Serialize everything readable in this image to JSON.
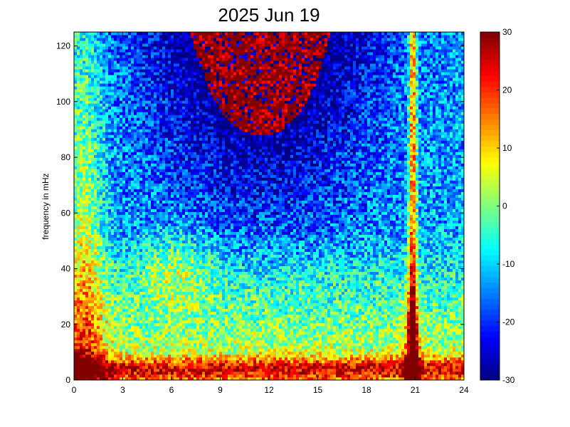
{
  "chart_data": {
    "type": "heatmap",
    "title": "2025 Jun 19",
    "xlabel": "",
    "ylabel": "frequency in mHz",
    "xlim": [
      0,
      24
    ],
    "ylim": [
      0,
      125
    ],
    "xticks": [
      0,
      3,
      6,
      9,
      12,
      15,
      18,
      21,
      24
    ],
    "yticks": [
      0,
      20,
      40,
      60,
      80,
      100,
      120
    ],
    "colorbar": {
      "range": [
        -30,
        30
      ],
      "ticks": [
        30,
        20,
        10,
        0,
        -10,
        -20,
        -30
      ],
      "colormap": "jet"
    },
    "grid": false,
    "features": [
      {
        "x": 20.8,
        "description_value": "broadband high-power stripe"
      },
      {
        "x_range": [
          0,
          1.8
        ],
        "description_value": "high power at all frequencies"
      },
      {
        "y_range": [
          0,
          8
        ],
        "description_value": "high power at low frequencies throughout the day"
      }
    ]
  }
}
